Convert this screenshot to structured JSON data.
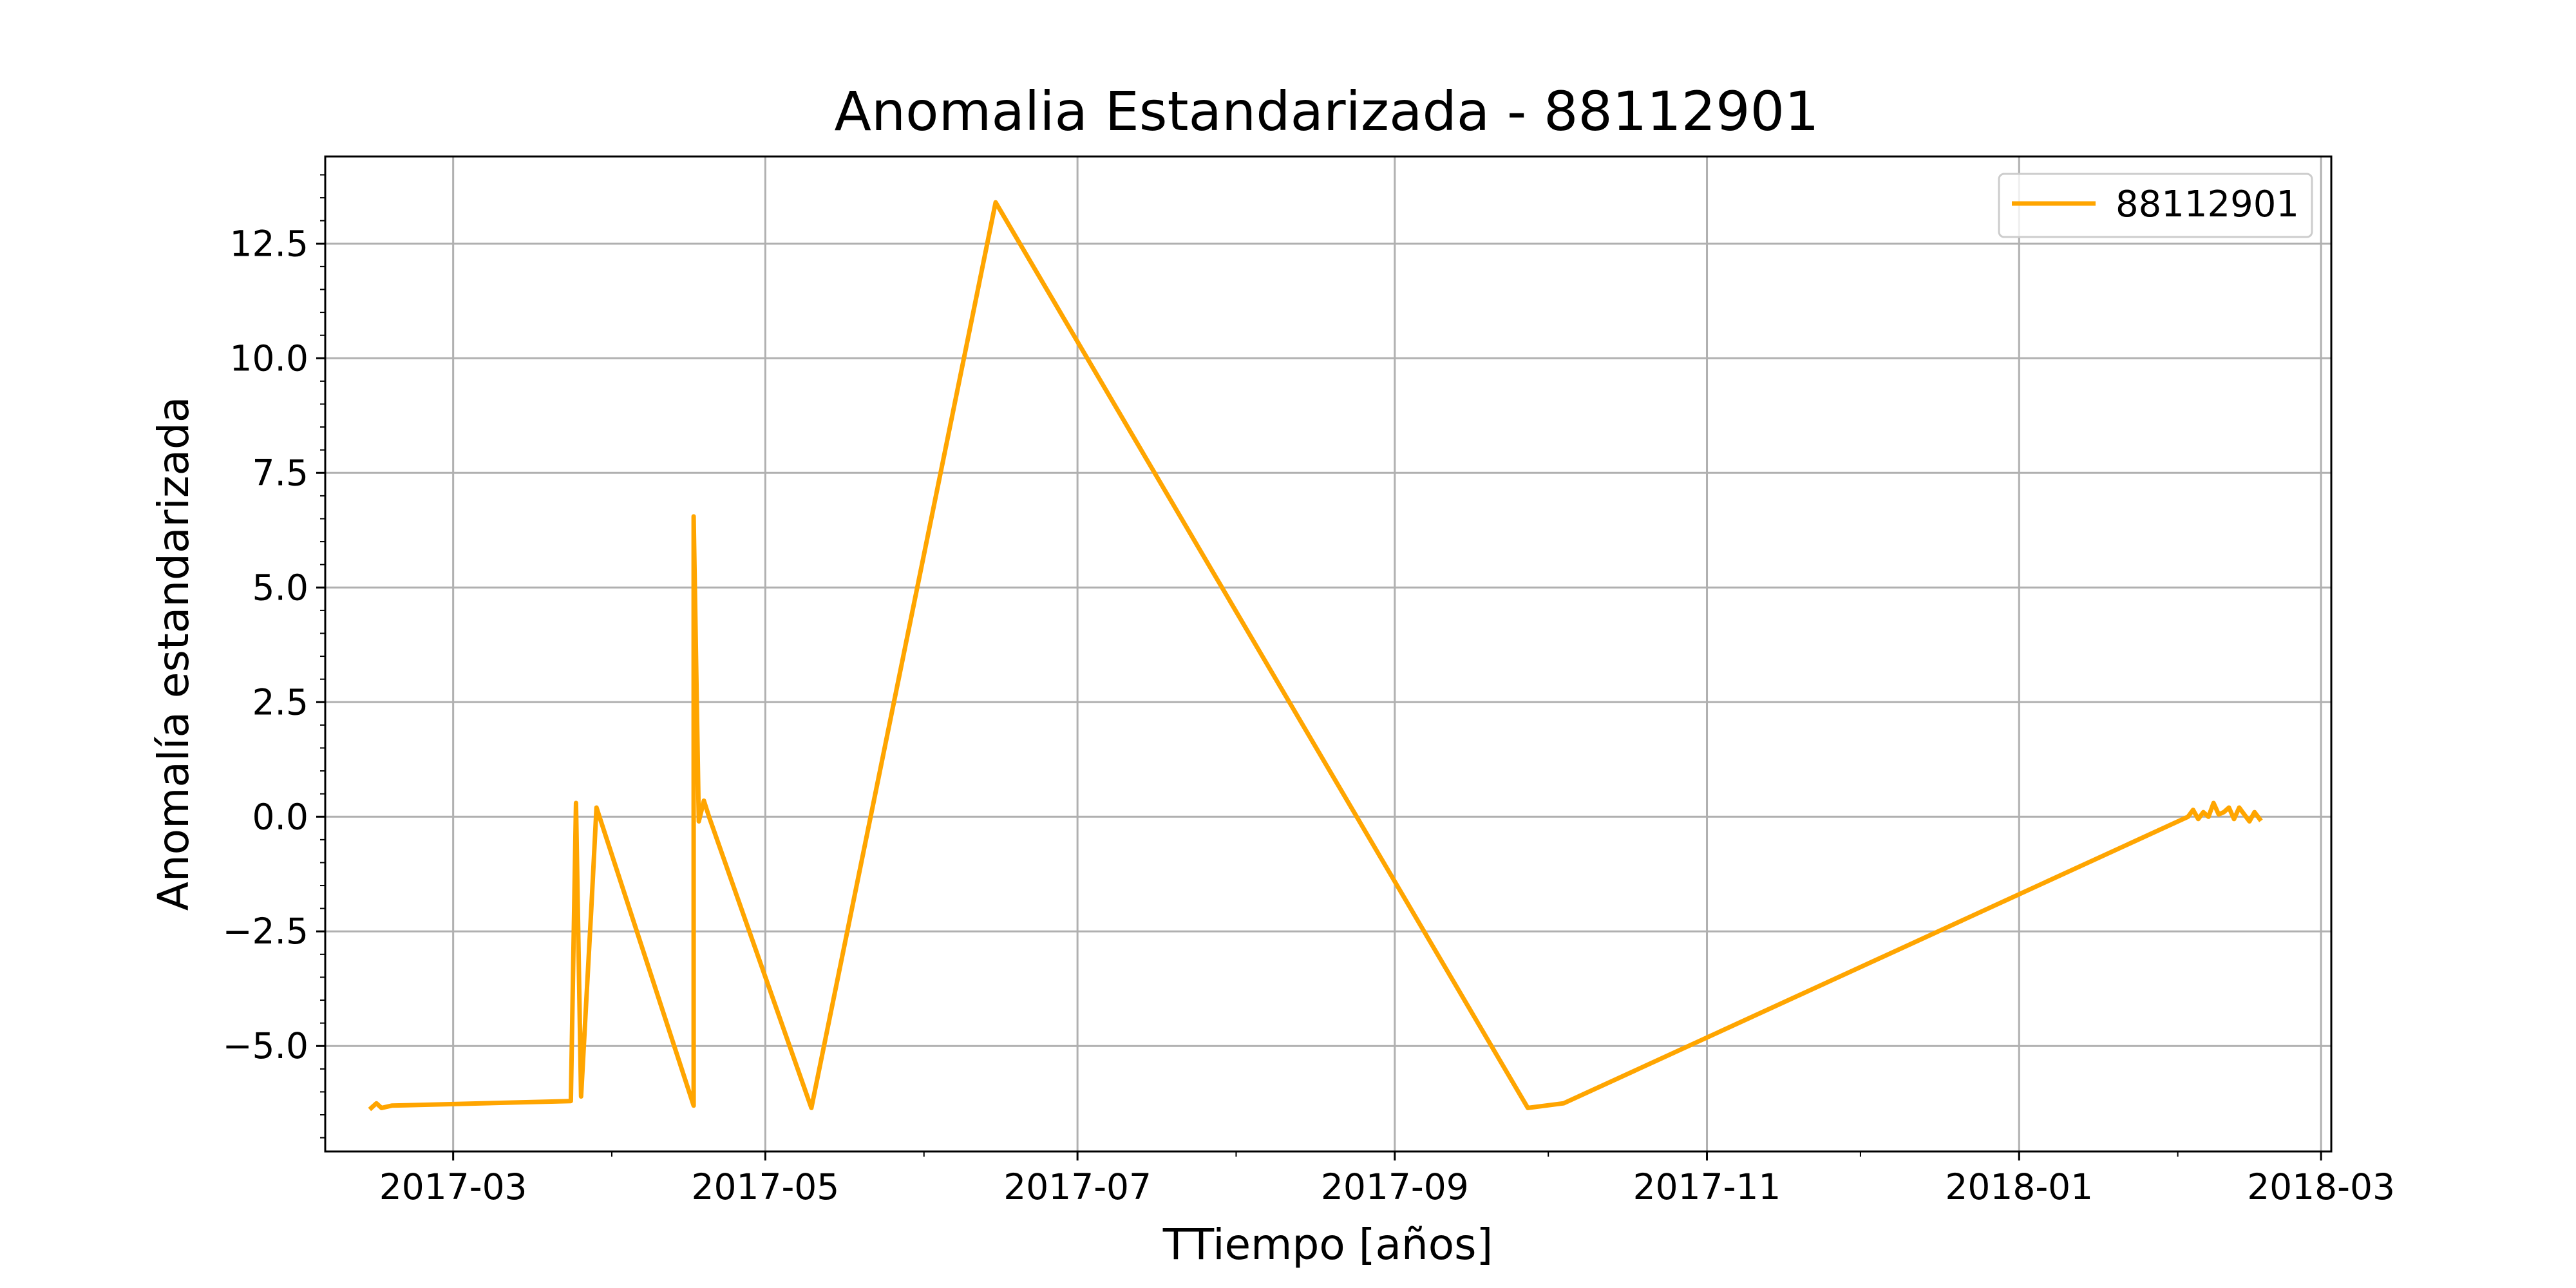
{
  "chart_data": {
    "type": "line",
    "title": "Anomalia Estandarizada - 88112901",
    "xlabel": "TTiempo [años]",
    "ylabel": "Anomalía estandarizada",
    "x_axis_type": "date",
    "xlim": [
      "2017-02-04",
      "2018-03-03"
    ],
    "ylim": [
      -7.3,
      14.4
    ],
    "grid": true,
    "legend_position": "upper right",
    "x_ticks": [
      {
        "date": "2017-03-01",
        "label": "2017-03"
      },
      {
        "date": "2017-05-01",
        "label": "2017-05"
      },
      {
        "date": "2017-07-01",
        "label": "2017-07"
      },
      {
        "date": "2017-09-01",
        "label": "2017-09"
      },
      {
        "date": "2017-11-01",
        "label": "2017-11"
      },
      {
        "date": "2018-01-01",
        "label": "2018-01"
      },
      {
        "date": "2018-03-01",
        "label": "2018-03"
      }
    ],
    "y_ticks": [
      {
        "value": -5.0,
        "label": "−5.0"
      },
      {
        "value": -2.5,
        "label": "−2.5"
      },
      {
        "value": 0.0,
        "label": "0.0"
      },
      {
        "value": 2.5,
        "label": "2.5"
      },
      {
        "value": 5.0,
        "label": "5.0"
      },
      {
        "value": 7.5,
        "label": "7.5"
      },
      {
        "value": 10.0,
        "label": "10.0"
      },
      {
        "value": 12.5,
        "label": "12.5"
      }
    ],
    "series": [
      {
        "name": "88112901",
        "color": "#FFA500",
        "points": [
          {
            "x": "2017-02-13",
            "y": -6.35
          },
          {
            "x": "2017-02-14",
            "y": -6.25
          },
          {
            "x": "2017-02-15",
            "y": -6.35
          },
          {
            "x": "2017-02-17",
            "y": -6.3
          },
          {
            "x": "2017-03-24",
            "y": -6.2
          },
          {
            "x": "2017-03-25",
            "y": 0.3
          },
          {
            "x": "2017-03-26",
            "y": -6.1
          },
          {
            "x": "2017-03-28",
            "y": -2.0
          },
          {
            "x": "2017-03-29",
            "y": 0.2
          },
          {
            "x": "2017-04-17",
            "y": -6.3
          },
          {
            "x": "2017-04-17",
            "y": 6.55
          },
          {
            "x": "2017-04-18",
            "y": -0.1
          },
          {
            "x": "2017-04-19",
            "y": 0.35
          },
          {
            "x": "2017-04-20",
            "y": 0.0
          },
          {
            "x": "2017-05-10",
            "y": -6.35
          },
          {
            "x": "2017-06-15",
            "y": 13.4
          },
          {
            "x": "2017-09-27",
            "y": -6.35
          },
          {
            "x": "2017-10-04",
            "y": -6.25
          },
          {
            "x": "2018-02-03",
            "y": 0.0
          },
          {
            "x": "2018-02-04",
            "y": 0.15
          },
          {
            "x": "2018-02-05",
            "y": -0.05
          },
          {
            "x": "2018-02-06",
            "y": 0.1
          },
          {
            "x": "2018-02-07",
            "y": 0.0
          },
          {
            "x": "2018-02-08",
            "y": 0.3
          },
          {
            "x": "2018-02-09",
            "y": 0.05
          },
          {
            "x": "2018-02-10",
            "y": 0.1
          },
          {
            "x": "2018-02-11",
            "y": 0.2
          },
          {
            "x": "2018-02-12",
            "y": -0.05
          },
          {
            "x": "2018-02-13",
            "y": 0.2
          },
          {
            "x": "2018-02-14",
            "y": 0.05
          },
          {
            "x": "2018-02-15",
            "y": -0.1
          },
          {
            "x": "2018-02-16",
            "y": 0.1
          },
          {
            "x": "2018-02-17",
            "y": -0.05
          }
        ]
      }
    ]
  }
}
